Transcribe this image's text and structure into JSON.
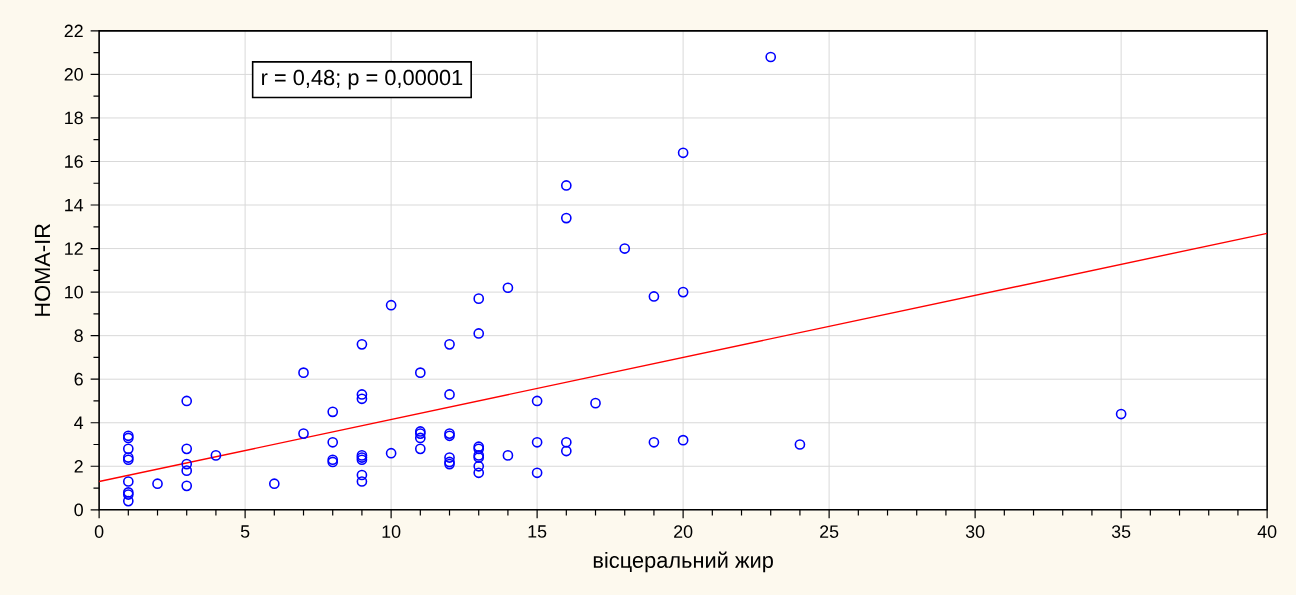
{
  "chart_data": {
    "type": "scatter",
    "xlabel": "вісцеральний жир",
    "ylabel": "HOMA-IR",
    "annotations": [
      "r = 0,48; p = 0,00001"
    ],
    "xlim": [
      0,
      40
    ],
    "ylim": [
      0,
      22
    ],
    "xticks": [
      0,
      5,
      10,
      15,
      20,
      25,
      30,
      35,
      40
    ],
    "yticks": [
      0,
      2,
      4,
      6,
      8,
      10,
      12,
      14,
      16,
      18,
      20,
      22
    ],
    "grid": true,
    "series": [
      {
        "type": "scatter",
        "color": "#0000ff",
        "marker": "circle",
        "x": [
          1,
          1,
          1,
          1,
          1,
          1,
          1,
          1,
          1,
          2,
          3,
          3,
          3,
          3,
          3,
          4,
          6,
          7,
          7,
          8,
          8,
          8,
          8,
          9,
          9,
          9,
          9,
          9,
          9,
          9,
          9,
          10,
          10,
          11,
          11,
          11,
          11,
          11,
          12,
          12,
          12,
          12,
          12,
          12,
          12,
          13,
          13,
          13,
          13,
          13,
          13,
          13,
          13,
          14,
          14,
          15,
          15,
          15,
          16,
          16,
          16,
          16,
          17,
          18,
          19,
          19,
          20,
          20,
          20,
          23,
          24,
          35
        ],
        "values": [
          3.4,
          3.3,
          2.8,
          2.4,
          2.3,
          1.3,
          0.8,
          0.7,
          0.4,
          1.2,
          5.0,
          2.8,
          2.1,
          1.8,
          1.1,
          2.5,
          1.2,
          6.3,
          3.5,
          4.5,
          3.1,
          2.3,
          2.2,
          7.6,
          5.3,
          5.1,
          2.5,
          2.4,
          2.3,
          1.6,
          1.3,
          9.4,
          2.6,
          6.3,
          3.6,
          3.5,
          3.3,
          2.8,
          7.6,
          5.3,
          3.5,
          3.4,
          2.4,
          2.2,
          2.1,
          9.7,
          8.1,
          2.9,
          2.8,
          2.5,
          2.4,
          2.0,
          1.7,
          10.2,
          2.5,
          5.0,
          3.1,
          1.7,
          14.9,
          13.4,
          3.1,
          2.7,
          4.9,
          12.0,
          9.8,
          3.1,
          16.4,
          10.0,
          3.2,
          20.8,
          3.0,
          4.4
        ]
      },
      {
        "type": "line",
        "color": "#ff0000",
        "marker": "none",
        "line_style": "solid",
        "x": [
          0,
          40
        ],
        "values": [
          1.3,
          12.7
        ]
      }
    ]
  }
}
